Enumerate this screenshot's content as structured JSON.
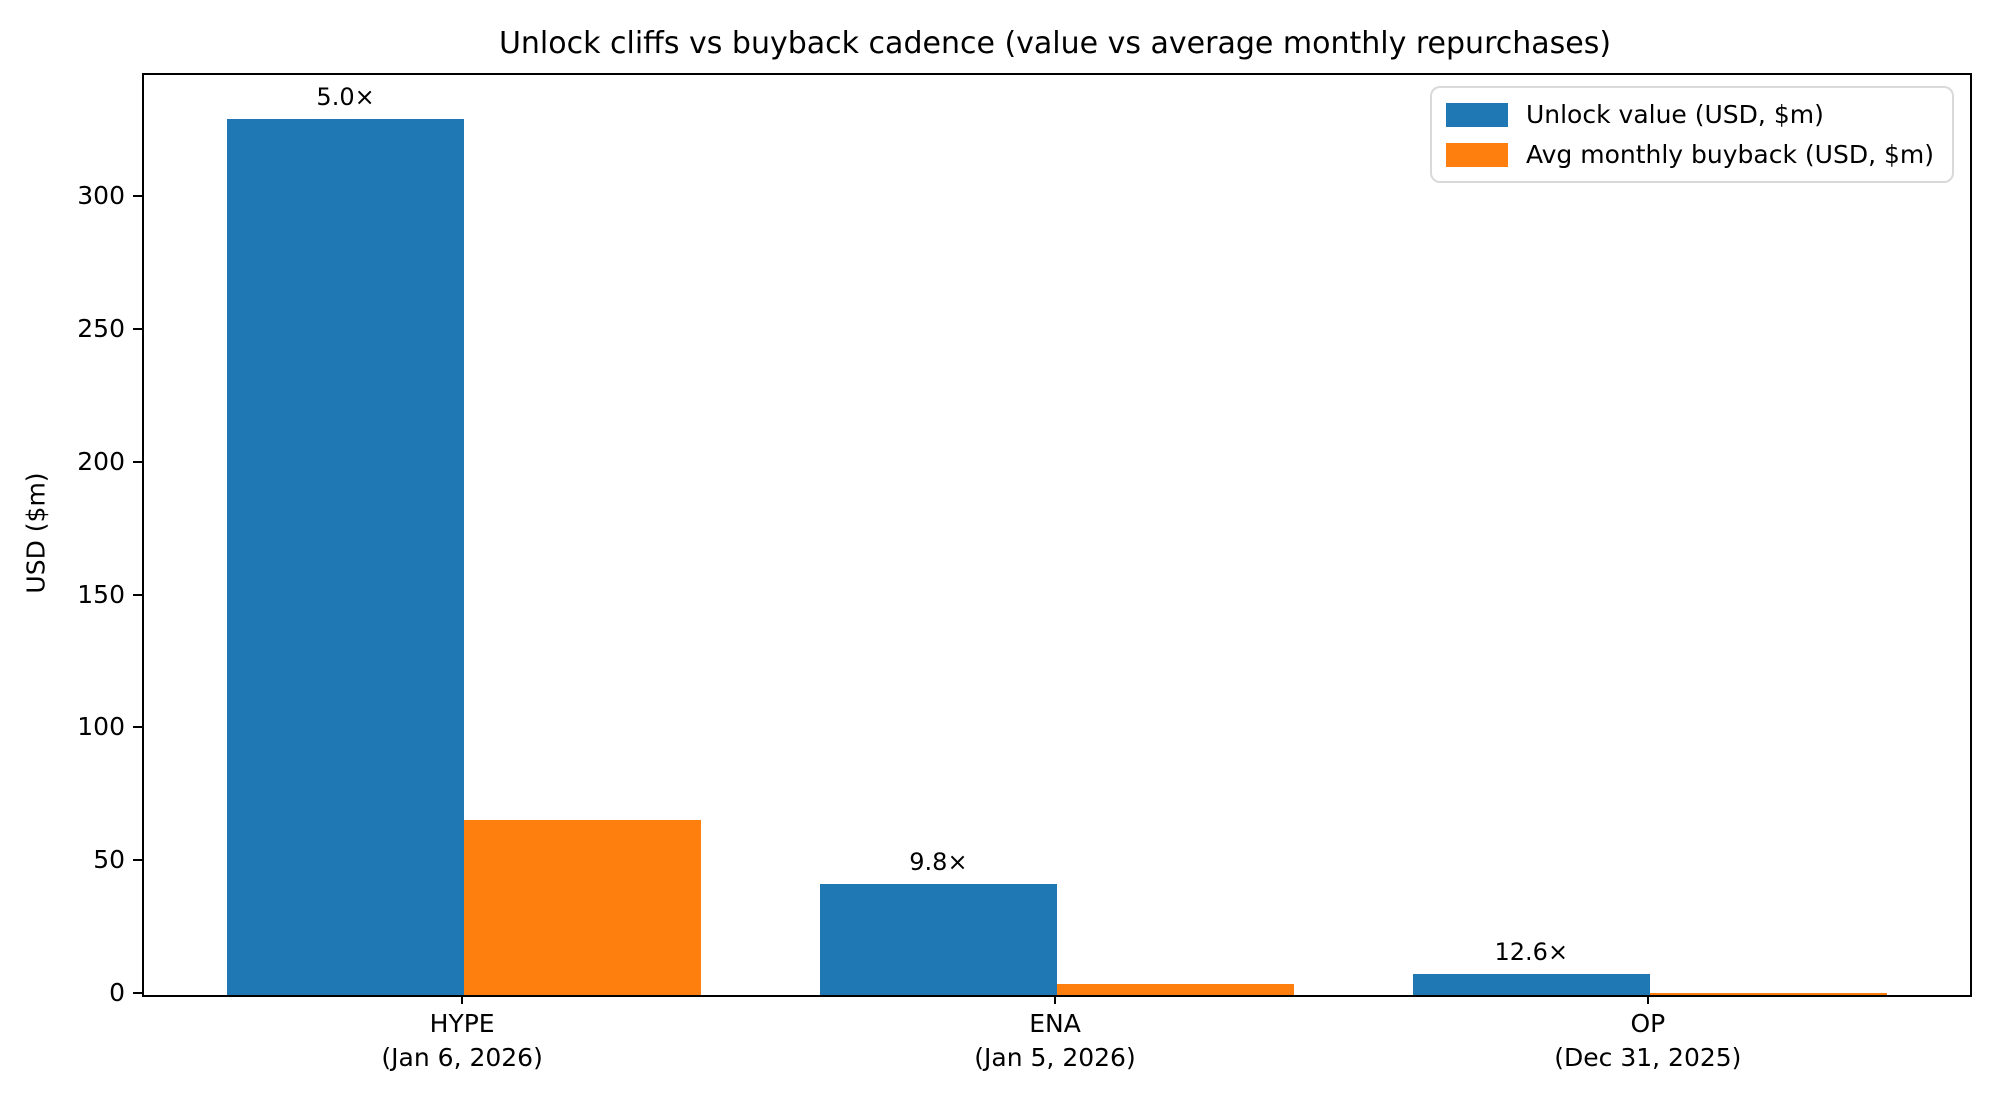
{
  "title": "Unlock cliffs vs buyback cadence (value vs average monthly repurchases)",
  "chart_data": {
    "type": "bar",
    "title": "Unlock cliffs vs buyback cadence (value vs average monthly repurchases)",
    "ylabel": "USD ($m)",
    "xlabel": "",
    "categories": [
      "HYPE",
      "ENA",
      "OP"
    ],
    "category_sublabels": [
      "(Jan 6, 2026)",
      "(Jan 5, 2026)",
      "(Dec 31, 2025)"
    ],
    "series": [
      {
        "name": "Unlock value (USD, $m)",
        "color": "#1f77b4",
        "values": [
          330,
          42,
          8
        ]
      },
      {
        "name": "Avg monthly buyback (USD, $m)",
        "color": "#ff7f0e",
        "values": [
          66,
          4.3,
          0.635
        ]
      }
    ],
    "bar_annotations": [
      "5.0×",
      "9.8×",
      "12.6×"
    ],
    "yticks": [
      0,
      50,
      100,
      150,
      200,
      250,
      300
    ],
    "ylim": [
      0,
      346.5
    ],
    "xlim": [
      -0.54,
      2.54
    ],
    "bar_width_units": 0.4,
    "grid": false,
    "legend_position": "upper right",
    "axis_color": "#000000",
    "background_color": "#ffffff"
  }
}
